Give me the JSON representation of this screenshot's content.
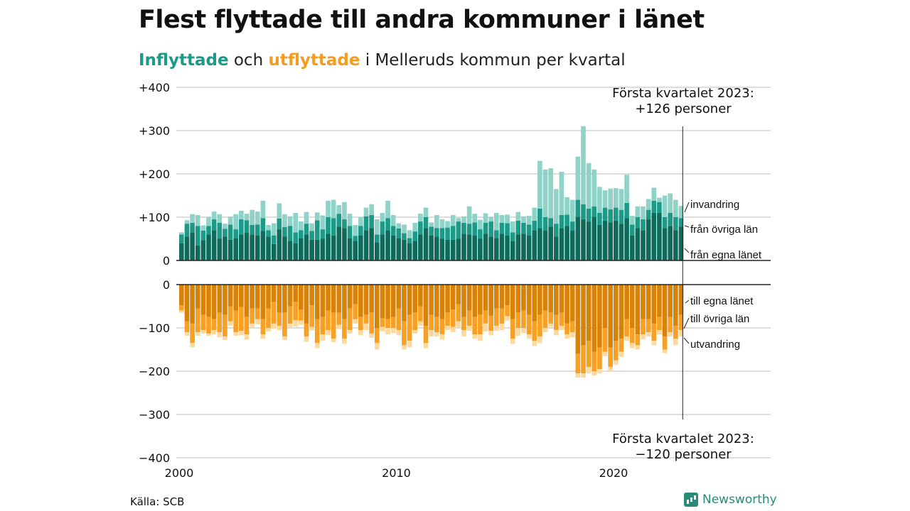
{
  "title": "Flest flyttade till andra kommuner i länet",
  "subtitle": {
    "part1": "Inflyttade",
    "part2": " och ",
    "part3": "utflyttade",
    "part4": " i Melleruds kommun per kvartal"
  },
  "colors": {
    "in_own": "#0e6b5c",
    "in_other": "#1b9a88",
    "in_immig": "#8fd3c8",
    "out_own": "#d98208",
    "out_other": "#f7a023",
    "out_emig": "#fdd9a0",
    "grid": "#dddddd"
  },
  "source": "Källa: SCB",
  "brand": "Newsworthy",
  "chart_data": [
    {
      "type": "bar",
      "stacked": true,
      "title": "Inflyttade",
      "x_start": "2000Q1",
      "x_end": "2023Q1",
      "xticks": [
        "2000",
        "2010",
        "2020"
      ],
      "yticks": [
        "0",
        "+100",
        "+200",
        "+300",
        "+400"
      ],
      "ylim": [
        0,
        400
      ],
      "grid": true,
      "annotation": {
        "line1": "Första kvartalet 2023:",
        "line2": "+126 personer"
      },
      "series": [
        {
          "name": "från egna länet",
          "values": [
            40,
            55,
            65,
            35,
            47,
            60,
            70,
            50,
            55,
            48,
            52,
            60,
            65,
            60,
            58,
            68,
            55,
            38,
            72,
            55,
            45,
            40,
            52,
            60,
            48,
            48,
            50,
            62,
            58,
            78,
            75,
            52,
            45,
            58,
            70,
            75,
            42,
            60,
            70,
            58,
            52,
            48,
            40,
            45,
            60,
            75,
            58,
            55,
            50,
            48,
            48,
            50,
            62,
            60,
            58,
            50,
            62,
            55,
            52,
            62,
            58,
            45,
            60,
            62,
            58,
            70,
            75,
            70,
            78,
            55,
            75,
            80,
            70,
            100,
            95,
            90,
            100,
            82,
            92,
            88,
            92,
            85,
            98,
            58,
            75,
            70,
            95,
            110,
            110,
            75,
            80,
            70,
            78
          ]
        },
        {
          "name": "från övriga län",
          "values": [
            20,
            30,
            22,
            45,
            22,
            20,
            25,
            37,
            18,
            35,
            20,
            35,
            28,
            22,
            25,
            30,
            15,
            20,
            25,
            22,
            35,
            25,
            18,
            25,
            20,
            45,
            22,
            38,
            40,
            30,
            20,
            28,
            12,
            22,
            32,
            30,
            18,
            30,
            28,
            22,
            22,
            15,
            12,
            22,
            30,
            25,
            20,
            20,
            25,
            28,
            32,
            40,
            25,
            25,
            30,
            22,
            25,
            35,
            18,
            25,
            28,
            20,
            32,
            25,
            25,
            22,
            45,
            30,
            20,
            30,
            30,
            26,
            20,
            40,
            35,
            30,
            25,
            28,
            30,
            30,
            30,
            32,
            35,
            25,
            25,
            25,
            22,
            28,
            25,
            25,
            30,
            30,
            20
          ]
        },
        {
          "name": "invandring",
          "values": [
            5,
            8,
            20,
            25,
            12,
            20,
            18,
            20,
            12,
            18,
            35,
            20,
            15,
            35,
            30,
            40,
            12,
            28,
            35,
            30,
            22,
            45,
            20,
            27,
            18,
            18,
            32,
            38,
            42,
            20,
            40,
            28,
            25,
            20,
            20,
            25,
            35,
            20,
            40,
            25,
            12,
            20,
            18,
            20,
            18,
            22,
            10,
            30,
            20,
            15,
            25,
            8,
            15,
            40,
            20,
            22,
            22,
            10,
            40,
            18,
            20,
            25,
            20,
            15,
            20,
            30,
            110,
            110,
            115,
            80,
            100,
            40,
            50,
            100,
            180,
            105,
            85,
            60,
            40,
            48,
            45,
            48,
            65,
            20,
            25,
            30,
            25,
            30,
            10,
            50,
            45,
            40,
            28
          ]
        }
      ]
    },
    {
      "type": "bar",
      "stacked": true,
      "title": "Utflyttade",
      "x_start": "2000Q1",
      "x_end": "2023Q1",
      "xticks": [
        "2000",
        "2010",
        "2020"
      ],
      "yticks": [
        "0",
        "−100",
        "−200",
        "−300",
        "−400"
      ],
      "ylim": [
        -400,
        0
      ],
      "grid": true,
      "annotation": {
        "line1": "Första kvartalet 2023:",
        "line2": "−120 personer"
      },
      "series": [
        {
          "name": "till egna länet",
          "values": [
            -48,
            -85,
            -90,
            -55,
            -70,
            -75,
            -80,
            -65,
            -70,
            -50,
            -60,
            -52,
            -75,
            -55,
            -55,
            -80,
            -55,
            -40,
            -65,
            -65,
            -50,
            -40,
            -58,
            -90,
            -48,
            -80,
            -75,
            -60,
            -65,
            -65,
            -80,
            -55,
            -45,
            -75,
            -70,
            -65,
            -100,
            -78,
            -80,
            -75,
            -55,
            -85,
            -70,
            -65,
            -50,
            -95,
            -70,
            -75,
            -80,
            -65,
            -58,
            -45,
            -75,
            -60,
            -75,
            -70,
            -60,
            -72,
            -55,
            -55,
            -48,
            -80,
            -65,
            -60,
            -70,
            -85,
            -70,
            -60,
            -65,
            -70,
            -65,
            -90,
            -85,
            -160,
            -140,
            -130,
            -155,
            -145,
            -100,
            -145,
            -130,
            -125,
            -80,
            -100,
            -115,
            -80,
            -80,
            -90,
            -75,
            -120,
            -75,
            -95,
            -70
          ]
        },
        {
          "name": "till övriga län",
          "values": [
            -12,
            -25,
            -45,
            -55,
            -35,
            -38,
            -25,
            -45,
            -50,
            -35,
            -50,
            -55,
            -40,
            -35,
            -25,
            -35,
            -45,
            -50,
            -30,
            -55,
            -40,
            -42,
            -25,
            -30,
            -50,
            -55,
            -40,
            -45,
            -60,
            -28,
            -45,
            -50,
            -35,
            -30,
            -20,
            -48,
            -35,
            -20,
            -20,
            -25,
            -50,
            -55,
            -60,
            -40,
            -35,
            -40,
            -35,
            -35,
            -35,
            -30,
            -40,
            -40,
            -30,
            -35,
            -40,
            -45,
            -30,
            -35,
            -40,
            -35,
            -25,
            -45,
            -35,
            -40,
            -45,
            -45,
            -50,
            -40,
            -25,
            -35,
            -30,
            -25,
            -25,
            -45,
            -65,
            -60,
            -45,
            -50,
            -55,
            -45,
            -45,
            -30,
            -40,
            -35,
            -25,
            -35,
            -30,
            -40,
            -30,
            -30,
            -35,
            -30,
            -35
          ]
        },
        {
          "name": "utvandring",
          "values": [
            -5,
            -8,
            -10,
            -8,
            -8,
            -5,
            -10,
            -12,
            -8,
            -10,
            -8,
            -10,
            -12,
            -8,
            -12,
            -10,
            -8,
            -12,
            -10,
            -8,
            -10,
            -15,
            -10,
            -12,
            -8,
            -12,
            -15,
            -12,
            -8,
            -10,
            -12,
            -8,
            -10,
            -12,
            -15,
            -10,
            -15,
            -10,
            -15,
            -12,
            -12,
            -10,
            -15,
            -8,
            -10,
            -12,
            -15,
            -10,
            -12,
            -10,
            -12,
            -15,
            -15,
            -12,
            -10,
            -15,
            -18,
            -10,
            -12,
            -15,
            -10,
            -12,
            -18,
            -12,
            -10,
            -12,
            -15,
            -10,
            -8,
            -12,
            -10,
            -10,
            -12,
            -10,
            -10,
            -15,
            -10,
            -10,
            -10,
            -10,
            -10,
            -12,
            -10,
            -12,
            -10,
            -12,
            -10,
            -10,
            -10,
            -8,
            -10,
            -15,
            -15
          ]
        }
      ]
    }
  ],
  "labels": {
    "in": [
      "invandring",
      "från övriga län",
      "från egna länet"
    ],
    "out": [
      "till egna länet",
      "till övriga län",
      "utvandring"
    ]
  }
}
